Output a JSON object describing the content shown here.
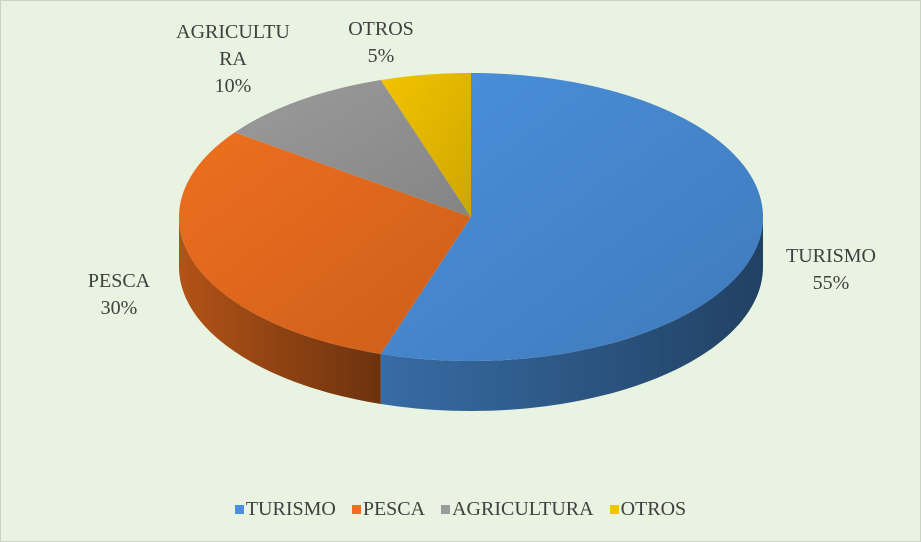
{
  "chart_data": {
    "type": "pie",
    "categories": [
      "TURISMO",
      "PESCA",
      "AGRICULTURA",
      "OTROS"
    ],
    "values": [
      55,
      30,
      10,
      5
    ],
    "value_labels": [
      "55%",
      "30%",
      "10%",
      "5%"
    ],
    "colors": [
      "#4a90dc",
      "#ef6f1f",
      "#9b9b9b",
      "#f3c300"
    ],
    "legend": "bottom"
  }
}
